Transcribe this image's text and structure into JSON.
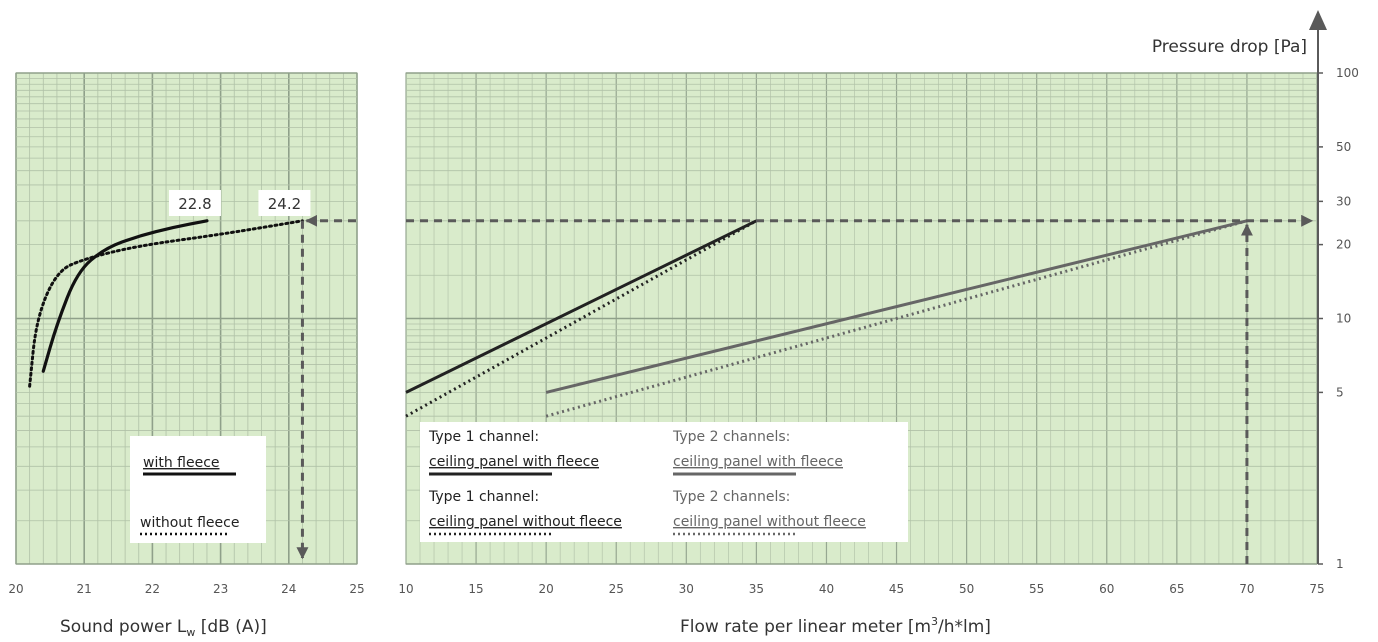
{
  "chart_data": [
    {
      "type": "line",
      "xlabel_main": "Sound power L",
      "xlabel_sub": "w",
      "xlabel_unit": " [dB (A)]",
      "xlim": [
        20,
        25
      ],
      "xticks": [
        "20",
        "21",
        "22",
        "23",
        "24",
        "25"
      ],
      "ylim_log": [
        1,
        100
      ],
      "grid": true,
      "series": [
        {
          "name": "with fleece",
          "style": "solid",
          "color": "#111111",
          "x": [
            20.4,
            20.6,
            20.9,
            21.3,
            21.8,
            22.3,
            22.8
          ],
          "y": [
            6.1,
            9.5,
            15.5,
            19.3,
            21.7,
            23.5,
            25.0
          ]
        },
        {
          "name": "without fleece",
          "style": "dotted",
          "color": "#111111",
          "x": [
            20.2,
            20.3,
            20.6,
            21.0,
            21.8,
            23.0,
            24.2
          ],
          "y": [
            5.3,
            10.0,
            15.6,
            17.5,
            19.8,
            22.0,
            25.0
          ]
        }
      ],
      "annotations": [
        {
          "text": "22.8",
          "x": 22.8
        },
        {
          "text": "24.2",
          "x": 24.2
        }
      ],
      "legend": {
        "position": "bottom-left",
        "items": [
          "with fleece",
          "without fleece"
        ]
      }
    },
    {
      "type": "line",
      "xlabel_main": "Flow rate per linear meter [m",
      "xlabel_sup": "3",
      "xlabel_unit": "/h*lm]",
      "ylabel": "Pressure drop [Pa]",
      "xlim": [
        10,
        75
      ],
      "xticks": [
        "10",
        "15",
        "20",
        "25",
        "30",
        "35",
        "40",
        "45",
        "50",
        "55",
        "60",
        "65",
        "70",
        "75"
      ],
      "ylim_log": [
        1,
        100
      ],
      "yticks": [
        "1",
        "5",
        "10",
        "20",
        "30",
        "50",
        "100"
      ],
      "grid": true,
      "series": [
        {
          "name_line1": "Type 1 channel:",
          "name_line2": "ceiling panel with fleece",
          "style": "solid",
          "color": "#222222",
          "x": [
            10,
            35
          ],
          "y": [
            5.0,
            25.0
          ]
        },
        {
          "name_line1": "Type 1 channel:",
          "name_line2": "ceiling panel without fleece",
          "style": "dotted",
          "color": "#222222",
          "x": [
            10,
            35
          ],
          "y": [
            4.0,
            25.0
          ]
        },
        {
          "name_line1": "Type 2 channels:",
          "name_line2": "ceiling panel with fleece",
          "style": "solid",
          "color": "#666666",
          "x": [
            20,
            70
          ],
          "y": [
            5.0,
            25.0
          ]
        },
        {
          "name_line1": "Type 2 channels:",
          "name_line2": "ceiling panel without fleece",
          "style": "dotted",
          "color": "#666666",
          "x": [
            20,
            70
          ],
          "y": [
            4.0,
            25.0
          ]
        }
      ],
      "reference": {
        "x": 70,
        "y": 25,
        "y_sound_power": 24.2
      },
      "legend": {
        "position": "bottom-left"
      }
    }
  ]
}
